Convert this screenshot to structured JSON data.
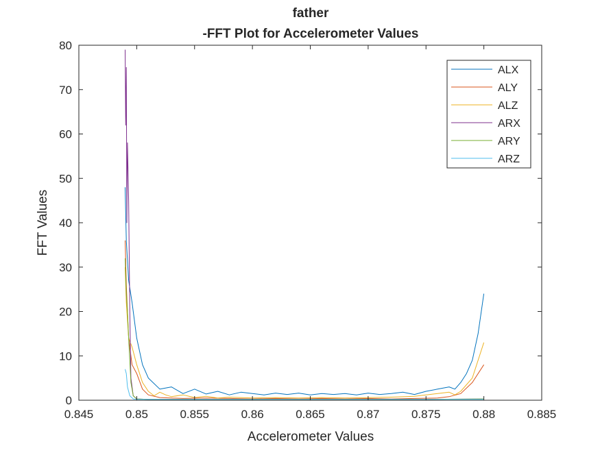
{
  "chart_data": {
    "type": "line",
    "title": "father",
    "subtitle": "-FFT Plot for Accelerometer Values",
    "xlabel": "Accelerometer Values",
    "ylabel": "FFT Values",
    "xlim": [
      0.845,
      0.885
    ],
    "ylim": [
      0,
      80
    ],
    "xticks": [
      "0.845",
      "0.85",
      "0.855",
      "0.86",
      "0.865",
      "0.87",
      "0.875",
      "0.88",
      "0.885"
    ],
    "yticks": [
      "0",
      "10",
      "20",
      "30",
      "40",
      "50",
      "60",
      "70",
      "80"
    ],
    "grid": false,
    "legend_position": "top-right",
    "series": [
      {
        "name": "ALX",
        "color": "#0072BD",
        "x": [
          0.849,
          0.8491,
          0.8493,
          0.8496,
          0.85,
          0.8505,
          0.851,
          0.852,
          0.853,
          0.854,
          0.855,
          0.856,
          0.857,
          0.858,
          0.859,
          0.86,
          0.861,
          0.862,
          0.863,
          0.864,
          0.865,
          0.866,
          0.867,
          0.868,
          0.869,
          0.87,
          0.871,
          0.872,
          0.873,
          0.874,
          0.875,
          0.876,
          0.877,
          0.8775,
          0.878,
          0.8785,
          0.879,
          0.8795,
          0.88
        ],
        "y": [
          48,
          36,
          27,
          22,
          14,
          8,
          5,
          2.5,
          3,
          1.5,
          2.5,
          1.4,
          2,
          1.2,
          1.8,
          1.5,
          1.2,
          1.6,
          1.3,
          1.6,
          1.2,
          1.5,
          1.3,
          1.5,
          1.2,
          1.6,
          1.3,
          1.5,
          1.8,
          1.3,
          2,
          2.5,
          3,
          2.5,
          4,
          6,
          9,
          15,
          24
        ]
      },
      {
        "name": "ALY",
        "color": "#D95319",
        "x": [
          0.849,
          0.8491,
          0.8493,
          0.8496,
          0.85,
          0.8505,
          0.851,
          0.852,
          0.854,
          0.856,
          0.858,
          0.86,
          0.862,
          0.864,
          0.866,
          0.868,
          0.87,
          0.872,
          0.874,
          0.876,
          0.877,
          0.878,
          0.879,
          0.88
        ],
        "y": [
          36,
          26,
          14,
          8,
          6,
          2.5,
          1.2,
          0.6,
          0.4,
          0.5,
          0.4,
          0.3,
          0.4,
          0.3,
          0.4,
          0.3,
          0.4,
          0.3,
          0.4,
          0.5,
          0.8,
          1.5,
          4,
          8
        ]
      },
      {
        "name": "ALZ",
        "color": "#EDB120",
        "x": [
          0.849,
          0.8491,
          0.8493,
          0.8496,
          0.85,
          0.8505,
          0.851,
          0.8515,
          0.852,
          0.8525,
          0.853,
          0.854,
          0.855,
          0.856,
          0.857,
          0.858,
          0.86,
          0.862,
          0.864,
          0.866,
          0.868,
          0.87,
          0.872,
          0.874,
          0.875,
          0.876,
          0.877,
          0.8775,
          0.878,
          0.879,
          0.88
        ],
        "y": [
          30,
          22,
          14,
          12,
          8,
          4,
          2,
          1,
          1.8,
          1.2,
          0.8,
          1.2,
          0.6,
          0.9,
          0.5,
          0.7,
          0.5,
          0.6,
          0.5,
          0.6,
          0.5,
          0.6,
          0.7,
          0.9,
          1.2,
          1.5,
          1.8,
          1.2,
          2,
          5,
          13
        ]
      },
      {
        "name": "ARX",
        "color": "#7E2F8E",
        "x": [
          0.849,
          0.84905,
          0.8491,
          0.84915,
          0.8492,
          0.8493,
          0.8494,
          0.8495,
          0.8497,
          0.85,
          0.851,
          0.855,
          0.86,
          0.865,
          0.87,
          0.875,
          0.88
        ],
        "y": [
          79,
          62,
          75,
          40,
          58,
          45,
          20,
          5,
          1,
          0.3,
          0.2,
          0.2,
          0.2,
          0.2,
          0.2,
          0.2,
          0.3
        ]
      },
      {
        "name": "ARY",
        "color": "#77AC30",
        "x": [
          0.849,
          0.8491,
          0.8492,
          0.8493,
          0.8495,
          0.8497,
          0.85,
          0.851,
          0.855,
          0.86,
          0.865,
          0.87,
          0.875,
          0.88
        ],
        "y": [
          32,
          24,
          20,
          14,
          4,
          1,
          0.3,
          0.2,
          0.2,
          0.2,
          0.2,
          0.2,
          0.2,
          0.3
        ]
      },
      {
        "name": "ARZ",
        "color": "#4DBEEE",
        "x": [
          0.849,
          0.8491,
          0.8492,
          0.8494,
          0.8497,
          0.85,
          0.855,
          0.86,
          0.865,
          0.87,
          0.875,
          0.88
        ],
        "y": [
          7,
          6,
          3,
          1,
          0.3,
          0.2,
          0.2,
          0.2,
          0.2,
          0.2,
          0.2,
          0.2
        ]
      }
    ]
  }
}
